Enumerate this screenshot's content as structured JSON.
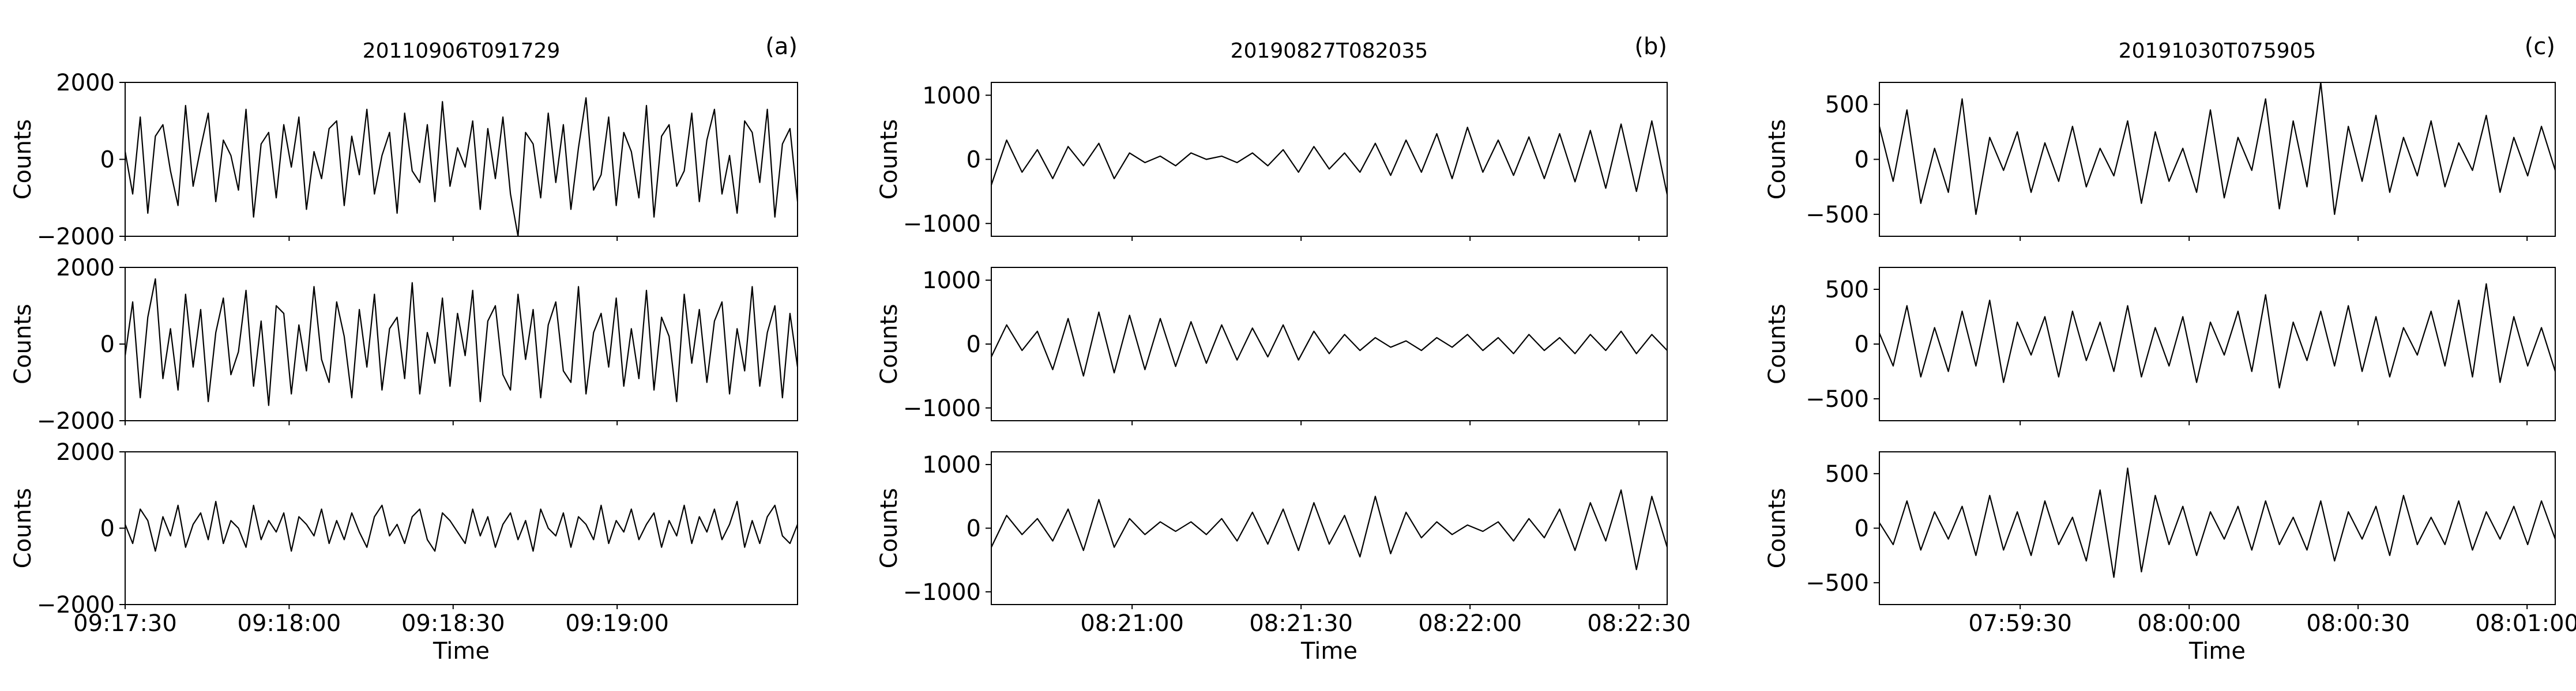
{
  "figure": {
    "ylabel": "Counts",
    "xlabel": "Time",
    "line_color": "#000000",
    "background": "#ffffff"
  },
  "chart_data": [
    {
      "type": "line",
      "title": "20110906T091729",
      "panel_label": "(a)",
      "xlabel": "Time",
      "ylabel": "Counts",
      "xlim": [
        "09:17:30",
        "09:19:33"
      ],
      "ylim": [
        -2000,
        2000
      ],
      "yticks": [
        -2000,
        0,
        2000
      ],
      "xticks": [
        "09:17:30",
        "09:18:00",
        "09:18:30",
        "09:19:00"
      ],
      "series": [
        {
          "values": [
            200,
            -900,
            1100,
            -1400,
            600,
            900,
            -300,
            -1200,
            1400,
            -700,
            300,
            1200,
            -1100,
            500,
            100,
            -800,
            1300,
            -1500,
            400,
            700,
            -1000,
            900,
            -200,
            1100,
            -1300,
            200,
            -500,
            800,
            1000,
            -1200,
            600,
            -400,
            1300,
            -900,
            100,
            700,
            -1400,
            1200,
            -300,
            -600,
            900,
            -1100,
            1500,
            -700,
            300,
            -200,
            1000,
            -1300,
            800,
            -500,
            1100,
            -900,
            -2000,
            700,
            400,
            -1000,
            1200,
            -600,
            900,
            -1300,
            300,
            1600,
            -800,
            -400,
            1100,
            -1200,
            700,
            200,
            -1000,
            1400,
            -1500,
            600,
            900,
            -700,
            -300,
            1200,
            -1100,
            500,
            1300,
            -900,
            100,
            -1400,
            1000,
            700,
            -600,
            1300,
            -1500,
            400,
            800,
            -1100
          ]
        },
        {
          "values": [
            -300,
            1100,
            -1400,
            700,
            1700,
            -900,
            400,
            -1200,
            1300,
            -600,
            900,
            -1500,
            300,
            1200,
            -800,
            -200,
            1400,
            -1100,
            600,
            -1600,
            1000,
            800,
            -1300,
            500,
            -700,
            1500,
            -400,
            -1000,
            1100,
            200,
            -1400,
            900,
            -600,
            1300,
            -1200,
            400,
            700,
            -900,
            1600,
            -1300,
            300,
            -500,
            1200,
            -1100,
            800,
            -300,
            1400,
            -1500,
            600,
            1000,
            -800,
            -1200,
            1300,
            -400,
            900,
            -1400,
            500,
            1100,
            -700,
            -1000,
            1500,
            -1300,
            300,
            800,
            -600,
            1200,
            -1100,
            400,
            -900,
            1400,
            -1200,
            700,
            200,
            -1500,
            1300,
            -500,
            900,
            -1000,
            600,
            1100,
            -1300,
            400,
            -700,
            1500,
            -1100,
            300,
            1000,
            -1400,
            800,
            -600
          ]
        },
        {
          "values": [
            100,
            -400,
            500,
            200,
            -600,
            300,
            -200,
            600,
            -500,
            100,
            400,
            -300,
            700,
            -400,
            200,
            0,
            -500,
            600,
            -300,
            200,
            -100,
            400,
            -600,
            300,
            100,
            -200,
            500,
            -400,
            200,
            -300,
            400,
            -100,
            -500,
            300,
            600,
            -200,
            100,
            -400,
            300,
            500,
            -300,
            -600,
            400,
            200,
            -100,
            -400,
            500,
            -200,
            300,
            -500,
            100,
            400,
            -300,
            200,
            -600,
            500,
            0,
            -200,
            400,
            -500,
            300,
            100,
            -300,
            600,
            -400,
            200,
            -100,
            500,
            -300,
            100,
            400,
            -500,
            200,
            -200,
            600,
            -400,
            300,
            -100,
            500,
            -300,
            100,
            700,
            -500,
            200,
            -400,
            300,
            600,
            -200,
            -400,
            100
          ]
        }
      ]
    },
    {
      "type": "line",
      "title": "20190827T082035",
      "panel_label": "(b)",
      "xlabel": "Time",
      "ylabel": "Counts",
      "xlim": [
        "08:20:35",
        "08:22:35"
      ],
      "ylim": [
        -1200,
        1200
      ],
      "yticks": [
        -1000,
        0,
        1000
      ],
      "xticks": [
        "08:21:00",
        "08:21:30",
        "08:22:00",
        "08:22:30"
      ],
      "series": [
        {
          "values": [
            -400,
            300,
            -200,
            150,
            -300,
            200,
            -100,
            250,
            -300,
            100,
            -50,
            50,
            -100,
            100,
            0,
            50,
            -50,
            100,
            -100,
            150,
            -200,
            200,
            -150,
            100,
            -200,
            250,
            -250,
            300,
            -200,
            400,
            -300,
            500,
            -200,
            300,
            -250,
            350,
            -300,
            400,
            -350,
            450,
            -450,
            550,
            -500,
            600,
            -550
          ]
        },
        {
          "values": [
            -200,
            300,
            -100,
            200,
            -400,
            400,
            -500,
            500,
            -450,
            450,
            -400,
            400,
            -350,
            350,
            -300,
            300,
            -250,
            250,
            -200,
            300,
            -250,
            200,
            -150,
            150,
            -100,
            100,
            -50,
            50,
            -100,
            100,
            -50,
            150,
            -100,
            100,
            -150,
            150,
            -100,
            100,
            -150,
            150,
            -100,
            200,
            -150,
            150,
            -100
          ]
        },
        {
          "values": [
            -300,
            200,
            -100,
            150,
            -200,
            300,
            -350,
            450,
            -300,
            150,
            -100,
            100,
            -50,
            100,
            -100,
            150,
            -200,
            250,
            -250,
            300,
            -350,
            400,
            -250,
            200,
            -450,
            500,
            -400,
            250,
            -150,
            100,
            -100,
            50,
            -50,
            100,
            -200,
            150,
            -150,
            300,
            -350,
            400,
            -200,
            600,
            -650,
            500,
            -300
          ]
        }
      ]
    },
    {
      "type": "line",
      "title": "20191030T075905",
      "panel_label": "(c)",
      "xlabel": "Time",
      "ylabel": "Counts",
      "xlim": [
        "07:59:05",
        "08:01:05"
      ],
      "ylim": [
        -700,
        700
      ],
      "yticks": [
        -500,
        0,
        500
      ],
      "xticks": [
        "07:59:30",
        "08:00:00",
        "08:00:30",
        "08:01:00"
      ],
      "series": [
        {
          "values": [
            300,
            -200,
            450,
            -400,
            100,
            -300,
            550,
            -500,
            200,
            -100,
            250,
            -300,
            150,
            -200,
            300,
            -250,
            100,
            -150,
            350,
            -400,
            250,
            -200,
            100,
            -300,
            450,
            -350,
            200,
            -100,
            550,
            -450,
            350,
            -250,
            700,
            -500,
            300,
            -200,
            400,
            -300,
            200,
            -150,
            350,
            -250,
            150,
            -100,
            400,
            -300,
            200,
            -150,
            300,
            -100
          ]
        },
        {
          "values": [
            100,
            -200,
            350,
            -300,
            150,
            -250,
            300,
            -200,
            400,
            -350,
            200,
            -100,
            250,
            -300,
            300,
            -150,
            200,
            -250,
            350,
            -300,
            150,
            -200,
            250,
            -350,
            200,
            -100,
            300,
            -250,
            450,
            -400,
            200,
            -150,
            300,
            -200,
            350,
            -250,
            250,
            -300,
            150,
            -100,
            300,
            -200,
            400,
            -300,
            550,
            -350,
            250,
            -200,
            150,
            -250
          ]
        },
        {
          "values": [
            50,
            -150,
            250,
            -200,
            150,
            -100,
            200,
            -250,
            300,
            -200,
            150,
            -250,
            250,
            -150,
            100,
            -300,
            350,
            -450,
            550,
            -400,
            300,
            -150,
            200,
            -250,
            150,
            -100,
            200,
            -200,
            250,
            -150,
            100,
            -200,
            250,
            -300,
            150,
            -100,
            200,
            -250,
            300,
            -150,
            100,
            -150,
            250,
            -200,
            150,
            -100,
            200,
            -150,
            250,
            -100
          ]
        }
      ]
    }
  ]
}
